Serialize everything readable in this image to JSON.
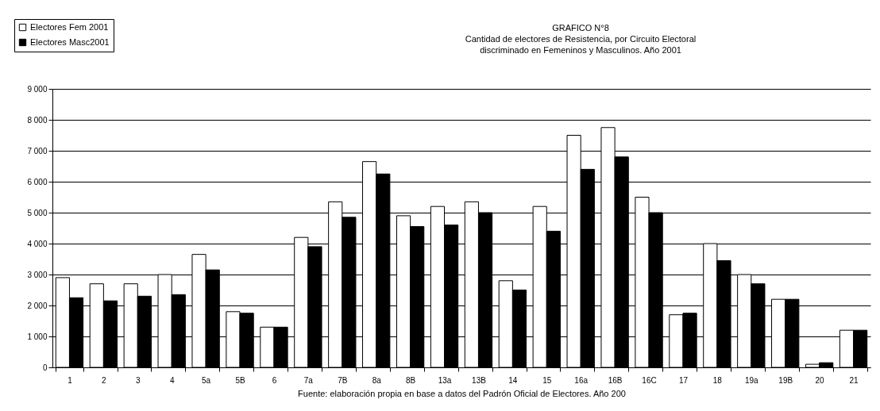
{
  "chart_data": {
    "type": "bar",
    "title": "GRAFICO N°8",
    "subtitle": "Cantidad de electores de Resistencia, por Circuito Electoral\ndiscriminado en Femeninos y Masculinos. Año 2001",
    "categories": [
      "1",
      "2",
      "3",
      "4",
      "5a",
      "5B",
      "6",
      "7a",
      "7B",
      "8a",
      "8B",
      "13a",
      "13B",
      "14",
      "15",
      "16a",
      "16B",
      "16C",
      "17",
      "18",
      "19a",
      "19B",
      "20",
      "21"
    ],
    "series": [
      {
        "name": "Electores Fem 2001",
        "color": "#ffffff",
        "values": [
          2900,
          2700,
          2700,
          3000,
          3650,
          1800,
          1300,
          4200,
          5350,
          6650,
          4900,
          5200,
          5350,
          2800,
          5200,
          7500,
          7750,
          5500,
          1700,
          4000,
          3000,
          2200,
          100,
          1200
        ]
      },
      {
        "name": "Electores Masc2001",
        "color": "#000000",
        "values": [
          2250,
          2150,
          2300,
          2350,
          3150,
          1750,
          1300,
          3900,
          4850,
          6250,
          4550,
          4600,
          5000,
          2500,
          4400,
          6400,
          6800,
          5000,
          1750,
          3450,
          2700,
          2200,
          150,
          1200
        ]
      }
    ],
    "ylim": [
      0,
      9000
    ],
    "yticks": [
      {
        "value": 0,
        "label": "0"
      },
      {
        "value": 1000,
        "label": "1 000"
      },
      {
        "value": 2000,
        "label": "2 000"
      },
      {
        "value": 3000,
        "label": "3 000"
      },
      {
        "value": 4000,
        "label": "4 000"
      },
      {
        "value": 5000,
        "label": "5 000"
      },
      {
        "value": 6000,
        "label": "6 000"
      },
      {
        "value": 7000,
        "label": "7 000"
      },
      {
        "value": 8000,
        "label": "8 000"
      },
      {
        "value": 9000,
        "label": "9 000"
      }
    ],
    "grid": "y",
    "legend": "top left",
    "annotations": [
      "Fuente: elaboración propia en base a datos del Padrón Oficial de Electores. Año 200"
    ]
  }
}
